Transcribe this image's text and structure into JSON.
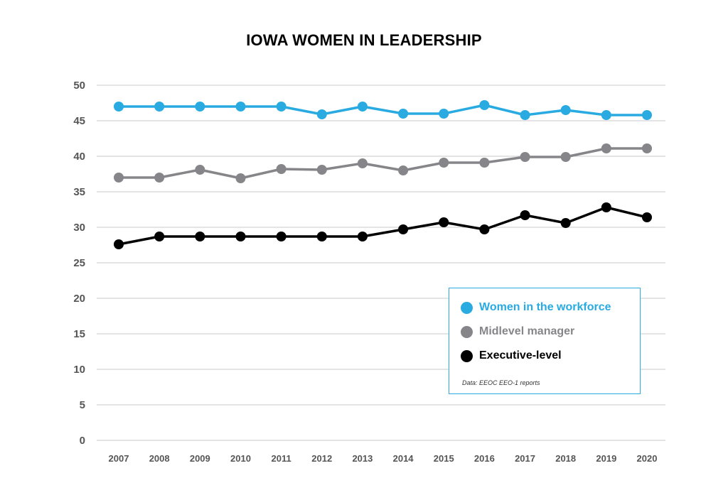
{
  "chart_data": {
    "type": "line",
    "title": "IOWA WOMEN IN LEADERSHIP",
    "x": [
      "2007",
      "2008",
      "2009",
      "2010",
      "2011",
      "2012",
      "2013",
      "2014",
      "2015",
      "2016",
      "2017",
      "2018",
      "2019",
      "2020"
    ],
    "y_ticks": [
      "0",
      "5",
      "10",
      "15",
      "20",
      "25",
      "30",
      "35",
      "40",
      "45",
      "50"
    ],
    "ylim": [
      0,
      50
    ],
    "grid": true,
    "legend_position": "bottom-right",
    "series": [
      {
        "name": "Women in the workforce",
        "color": "#29abe2",
        "values": [
          47,
          47,
          47,
          47,
          47,
          45.9,
          47,
          46,
          46,
          47.2,
          45.8,
          46.5,
          45.8,
          45.8
        ]
      },
      {
        "name": "Midlevel manager",
        "color": "#86868a",
        "values": [
          37,
          37,
          38.1,
          36.9,
          38.2,
          38.1,
          39,
          38,
          39.1,
          39.1,
          39.9,
          39.9,
          41.1,
          41.1
        ]
      },
      {
        "name": "Executive-level",
        "color": "#000000",
        "values": [
          27.6,
          28.7,
          28.7,
          28.7,
          28.7,
          28.7,
          28.7,
          29.7,
          30.7,
          29.7,
          31.7,
          30.6,
          32.8,
          31.4
        ]
      }
    ],
    "note": "Data: EEOC EEO-1 reports"
  }
}
